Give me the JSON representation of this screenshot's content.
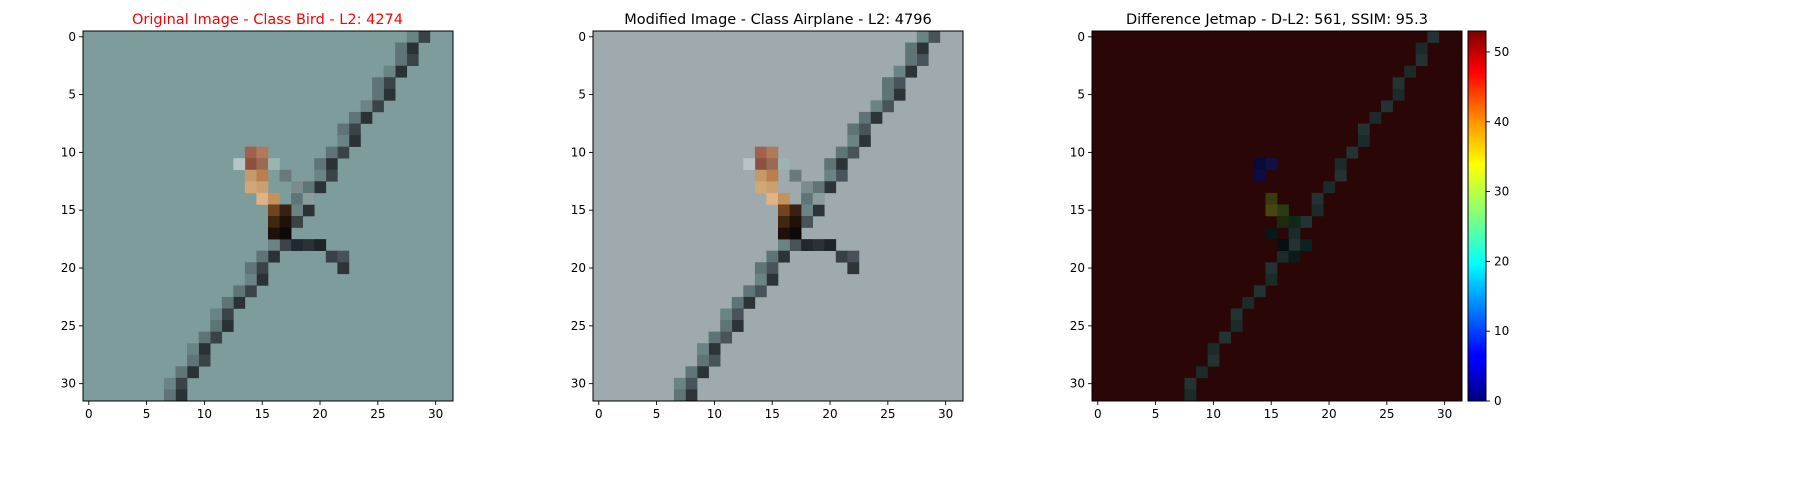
{
  "figure": {
    "colors": {
      "background": "#ffffff",
      "axis": "#000000",
      "title_highlight": "#ff0000",
      "title_default": "#000000"
    }
  },
  "chart_data": [
    {
      "type": "heatmap",
      "title": "Original Image - Class Bird - L2: 4274",
      "title_color": "#ff0000",
      "image_size": [
        32,
        32
      ],
      "xlim": [
        -0.5,
        31.5
      ],
      "ylim": [
        31.5,
        -0.5
      ],
      "xticks": [
        0,
        5,
        10,
        15,
        20,
        25,
        30
      ],
      "yticks": [
        0,
        5,
        10,
        15,
        20,
        25,
        30
      ],
      "background_color": "#7e9c9c",
      "content": "pixelated photo of a small bird perched on a dark diagonal wire"
    },
    {
      "type": "heatmap",
      "title": "Modified Image - Class Airplane - L2: 4796",
      "title_color": "#000000",
      "image_size": [
        32,
        32
      ],
      "xlim": [
        -0.5,
        31.5
      ],
      "ylim": [
        31.5,
        -0.5
      ],
      "xticks": [
        0,
        5,
        10,
        15,
        20,
        25,
        30
      ],
      "yticks": [
        0,
        5,
        10,
        15,
        20,
        25,
        30
      ],
      "background_color": "#9eaaad",
      "content": "adversarially perturbed version of the bird image"
    },
    {
      "type": "heatmap",
      "title": "Difference Jetmap - D-L2: 561, SSIM: 95.3",
      "title_color": "#000000",
      "image_size": [
        32,
        32
      ],
      "xlim": [
        -0.5,
        31.5
      ],
      "ylim": [
        31.5,
        -0.5
      ],
      "xticks": [
        0,
        5,
        10,
        15,
        20,
        25,
        30
      ],
      "yticks": [
        0,
        5,
        10,
        15,
        20,
        25,
        30
      ],
      "background_color": "#2a0606",
      "colormap": "jet",
      "colorbar": {
        "range": [
          0,
          53
        ],
        "ticks": [
          0,
          10,
          20,
          30,
          40,
          50
        ]
      }
    }
  ]
}
